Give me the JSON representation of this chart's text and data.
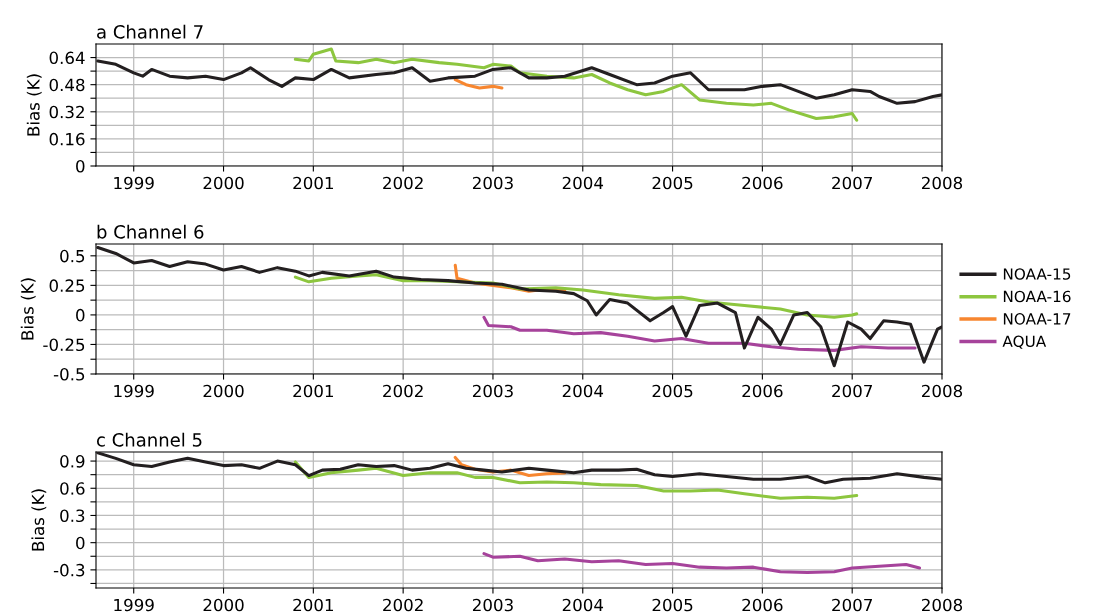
{
  "chart_data": [
    {
      "type": "line",
      "title": "a Channel 7",
      "ylabel": "Bias (K)",
      "xlim": [
        1998.58,
        2008
      ],
      "xticks": [
        1999,
        2000,
        2001,
        2002,
        2003,
        2004,
        2005,
        2006,
        2007,
        2008
      ],
      "ylim": [
        0,
        0.72
      ],
      "yticks": [
        0,
        {
          "value": 0.08,
          "label": null
        },
        0.16,
        {
          "value": 0.24,
          "label": null
        },
        0.32,
        {
          "value": 0.4,
          "label": null
        },
        0.48,
        {
          "value": 0.56,
          "label": null
        },
        0.64
      ],
      "grid": true,
      "legend": false,
      "series": [
        {
          "color": "#231f20",
          "x": [
            1998.6,
            1998.8,
            1999.0,
            1999.1,
            1999.2,
            1999.4,
            1999.6,
            1999.8,
            2000.0,
            2000.2,
            2000.3,
            2000.5,
            2000.65,
            2000.8,
            2001.0,
            2001.2,
            2001.4,
            2001.7,
            2001.9,
            2002.1,
            2002.3,
            2002.5,
            2002.8,
            2003.0,
            2003.2,
            2003.4,
            2003.6,
            2003.8,
            2004.1,
            2004.3,
            2004.6,
            2004.8,
            2005.0,
            2005.2,
            2005.4,
            2005.6,
            2005.8,
            2006.0,
            2006.2,
            2006.4,
            2006.6,
            2006.8,
            2007.0,
            2007.2,
            2007.3,
            2007.5,
            2007.7,
            2007.9,
            2008.0
          ],
          "values": [
            0.62,
            0.6,
            0.55,
            0.53,
            0.57,
            0.53,
            0.52,
            0.53,
            0.51,
            0.55,
            0.58,
            0.51,
            0.47,
            0.52,
            0.51,
            0.57,
            0.52,
            0.54,
            0.55,
            0.58,
            0.5,
            0.52,
            0.53,
            0.57,
            0.58,
            0.52,
            0.52,
            0.53,
            0.58,
            0.54,
            0.48,
            0.49,
            0.53,
            0.55,
            0.45,
            0.45,
            0.45,
            0.47,
            0.48,
            0.44,
            0.4,
            0.42,
            0.45,
            0.44,
            0.41,
            0.37,
            0.38,
            0.41,
            0.42
          ]
        },
        {
          "color": "#8dc63f",
          "x": [
            2000.8,
            2000.95,
            2001.0,
            2001.2,
            2001.25,
            2001.5,
            2001.7,
            2001.9,
            2002.1,
            2002.4,
            2002.6,
            2002.9,
            2003.0,
            2003.2,
            2003.3,
            2003.6,
            2003.9,
            2004.1,
            2004.3,
            2004.5,
            2004.7,
            2004.9,
            2005.1,
            2005.3,
            2005.6,
            2005.9,
            2006.1,
            2006.3,
            2006.6,
            2006.8,
            2007.0,
            2007.05
          ],
          "values": [
            0.63,
            0.62,
            0.66,
            0.69,
            0.62,
            0.61,
            0.63,
            0.61,
            0.63,
            0.61,
            0.6,
            0.58,
            0.6,
            0.59,
            0.55,
            0.53,
            0.52,
            0.54,
            0.49,
            0.45,
            0.42,
            0.44,
            0.48,
            0.39,
            0.37,
            0.36,
            0.37,
            0.33,
            0.28,
            0.29,
            0.31,
            0.27
          ]
        },
        {
          "color": "#f7862f",
          "x": [
            2002.58,
            2002.7,
            2002.85,
            2003.0,
            2003.1
          ],
          "values": [
            0.51,
            0.48,
            0.46,
            0.47,
            0.46
          ]
        }
      ]
    },
    {
      "type": "line",
      "title": "b Channel 6",
      "ylabel": "Bias (K)",
      "xlim": [
        1998.58,
        2008
      ],
      "xticks": [
        1999,
        2000,
        2001,
        2002,
        2003,
        2004,
        2005,
        2006,
        2007,
        2008
      ],
      "ylim": [
        -0.5,
        0.6
      ],
      "yticks": [
        -0.5,
        {
          "value": -0.375,
          "label": null
        },
        -0.25,
        {
          "value": -0.125,
          "label": null
        },
        0,
        {
          "value": 0.125,
          "label": null
        },
        0.25,
        {
          "value": 0.375,
          "label": null
        },
        0.5
      ],
      "grid": true,
      "legend": "right",
      "series": [
        {
          "name": "NOAA-15",
          "color": "#231f20",
          "x": [
            1998.6,
            1998.8,
            1999.0,
            1999.2,
            1999.4,
            1999.6,
            1999.8,
            2000.0,
            2000.2,
            2000.4,
            2000.6,
            2000.8,
            2000.95,
            2001.1,
            2001.4,
            2001.7,
            2001.9,
            2002.2,
            2002.5,
            2002.8,
            2003.1,
            2003.4,
            2003.7,
            2003.9,
            2004.05,
            2004.15,
            2004.3,
            2004.5,
            2004.75,
            2004.9,
            2005.0,
            2005.15,
            2005.3,
            2005.5,
            2005.7,
            2005.8,
            2005.95,
            2006.1,
            2006.2,
            2006.35,
            2006.5,
            2006.65,
            2006.8,
            2006.95,
            2007.1,
            2007.2,
            2007.35,
            2007.5,
            2007.65,
            2007.8,
            2007.95,
            2008.0
          ],
          "values": [
            0.57,
            0.52,
            0.44,
            0.46,
            0.41,
            0.45,
            0.43,
            0.38,
            0.41,
            0.36,
            0.4,
            0.37,
            0.33,
            0.36,
            0.33,
            0.37,
            0.32,
            0.3,
            0.29,
            0.27,
            0.26,
            0.21,
            0.2,
            0.18,
            0.12,
            0.0,
            0.13,
            0.1,
            -0.05,
            0.02,
            0.07,
            -0.18,
            0.08,
            0.1,
            0.02,
            -0.28,
            -0.02,
            -0.12,
            -0.25,
            0.0,
            0.02,
            -0.1,
            -0.43,
            -0.06,
            -0.12,
            -0.2,
            -0.05,
            -0.06,
            -0.08,
            -0.4,
            -0.12,
            -0.1
          ]
        },
        {
          "name": "NOAA-16",
          "color": "#8dc63f",
          "x": [
            2000.8,
            2000.95,
            2001.2,
            2001.5,
            2001.7,
            2002.0,
            2002.3,
            2002.6,
            2003.0,
            2003.3,
            2003.7,
            2004.0,
            2004.4,
            2004.8,
            2005.1,
            2005.4,
            2005.8,
            2006.2,
            2006.5,
            2006.8,
            2007.0,
            2007.05
          ],
          "values": [
            0.32,
            0.28,
            0.31,
            0.33,
            0.34,
            0.29,
            0.29,
            0.28,
            0.27,
            0.22,
            0.23,
            0.21,
            0.17,
            0.14,
            0.15,
            0.11,
            0.08,
            0.05,
            0.0,
            -0.02,
            0.0,
            0.01
          ]
        },
        {
          "name": "NOAA-17",
          "color": "#f7862f",
          "x": [
            2002.58,
            2002.6,
            2002.8,
            2003.0,
            2003.2,
            2003.4,
            2003.6,
            2003.8
          ],
          "values": [
            0.42,
            0.31,
            0.27,
            0.25,
            0.23,
            0.2,
            0.22,
            0.21
          ]
        },
        {
          "name": "AQUA",
          "color": "#a6439b",
          "x": [
            2002.9,
            2002.95,
            2003.2,
            2003.3,
            2003.6,
            2003.9,
            2004.2,
            2004.5,
            2004.8,
            2005.1,
            2005.4,
            2005.8,
            2006.1,
            2006.4,
            2006.8,
            2007.1,
            2007.4,
            2007.7
          ],
          "values": [
            -0.02,
            -0.09,
            -0.1,
            -0.13,
            -0.13,
            -0.16,
            -0.15,
            -0.18,
            -0.22,
            -0.2,
            -0.24,
            -0.24,
            -0.27,
            -0.29,
            -0.3,
            -0.27,
            -0.28,
            -0.28
          ]
        }
      ]
    },
    {
      "type": "line",
      "title": "c Channel 5",
      "ylabel": "Bias (K)",
      "xlim": [
        1998.58,
        2008
      ],
      "xticks": [
        1999,
        2000,
        2001,
        2002,
        2003,
        2004,
        2005,
        2006,
        2007,
        2008
      ],
      "ylim": [
        -0.5,
        1.0
      ],
      "yticks": [
        {
          "value": -0.45,
          "label": null
        },
        -0.3,
        {
          "value": -0.15,
          "label": null
        },
        0,
        {
          "value": 0.15,
          "label": null
        },
        0.3,
        {
          "value": 0.45,
          "label": null
        },
        0.6,
        {
          "value": 0.75,
          "label": null
        },
        0.9
      ],
      "grid": true,
      "legend": false,
      "series": [
        {
          "color": "#231f20",
          "x": [
            1998.6,
            1998.8,
            1999.0,
            1999.2,
            1999.4,
            1999.6,
            1999.8,
            2000.0,
            2000.2,
            2000.4,
            2000.6,
            2000.8,
            2000.95,
            2001.1,
            2001.3,
            2001.5,
            2001.7,
            2001.9,
            2002.1,
            2002.3,
            2002.5,
            2002.7,
            2002.9,
            2003.1,
            2003.4,
            2003.6,
            2003.9,
            2004.1,
            2004.4,
            2004.6,
            2004.8,
            2005.0,
            2005.3,
            2005.6,
            2005.9,
            2006.2,
            2006.5,
            2006.7,
            2006.9,
            2007.2,
            2007.5,
            2007.8,
            2008.0
          ],
          "values": [
            0.99,
            0.93,
            0.86,
            0.84,
            0.89,
            0.93,
            0.89,
            0.85,
            0.86,
            0.82,
            0.9,
            0.86,
            0.74,
            0.8,
            0.81,
            0.86,
            0.84,
            0.85,
            0.8,
            0.82,
            0.87,
            0.82,
            0.8,
            0.78,
            0.82,
            0.8,
            0.77,
            0.8,
            0.8,
            0.81,
            0.75,
            0.73,
            0.76,
            0.73,
            0.7,
            0.7,
            0.73,
            0.66,
            0.7,
            0.71,
            0.76,
            0.72,
            0.7
          ]
        },
        {
          "color": "#8dc63f",
          "x": [
            2000.8,
            2000.95,
            2001.2,
            2001.5,
            2001.7,
            2002.0,
            2002.3,
            2002.6,
            2002.8,
            2003.0,
            2003.3,
            2003.6,
            2003.9,
            2004.2,
            2004.6,
            2004.9,
            2005.2,
            2005.5,
            2005.8,
            2006.2,
            2006.5,
            2006.8,
            2007.05
          ],
          "values": [
            0.89,
            0.72,
            0.77,
            0.8,
            0.82,
            0.74,
            0.77,
            0.77,
            0.72,
            0.72,
            0.66,
            0.67,
            0.66,
            0.64,
            0.63,
            0.57,
            0.57,
            0.58,
            0.54,
            0.49,
            0.5,
            0.49,
            0.52
          ]
        },
        {
          "color": "#f7862f",
          "x": [
            2002.58,
            2002.65,
            2002.8,
            2003.0,
            2003.2,
            2003.4,
            2003.6,
            2003.8
          ],
          "values": [
            0.94,
            0.86,
            0.81,
            0.78,
            0.8,
            0.74,
            0.76,
            0.77
          ]
        },
        {
          "color": "#a6439b",
          "x": [
            2002.9,
            2003.0,
            2003.3,
            2003.5,
            2003.8,
            2004.1,
            2004.4,
            2004.7,
            2005.0,
            2005.3,
            2005.6,
            2005.9,
            2006.2,
            2006.5,
            2006.8,
            2007.0,
            2007.3,
            2007.6,
            2007.75
          ],
          "values": [
            -0.12,
            -0.16,
            -0.15,
            -0.2,
            -0.18,
            -0.21,
            -0.2,
            -0.24,
            -0.23,
            -0.27,
            -0.28,
            -0.27,
            -0.32,
            -0.33,
            -0.32,
            -0.28,
            -0.26,
            -0.24,
            -0.28
          ]
        }
      ]
    }
  ]
}
